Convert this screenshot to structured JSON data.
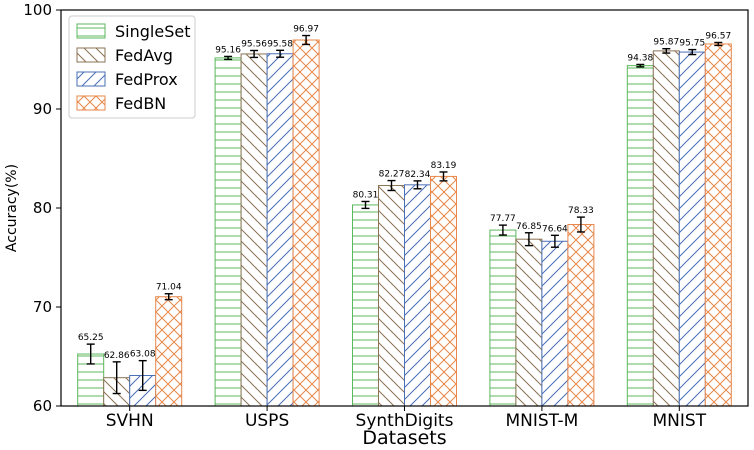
{
  "chart_data": {
    "type": "bar",
    "title": "",
    "xlabel": "Datasets",
    "ylabel": "Accuracy(%)",
    "ylim": [
      60,
      100
    ],
    "yticks": [
      60,
      70,
      80,
      90,
      100
    ],
    "grid": false,
    "legend_position": "top-left",
    "categories": [
      "SVHN",
      "USPS",
      "SynthDigits",
      "MNIST-M",
      "MNIST"
    ],
    "series": [
      {
        "name": "SingleSet",
        "color": "#5cb85c",
        "pattern": "horizontal",
        "values": [
          65.25,
          95.16,
          80.31,
          77.77,
          94.38
        ],
        "errors": [
          1.0,
          0.15,
          0.35,
          0.5,
          0.12
        ],
        "labels": [
          "65.25",
          "95.16",
          "80.31",
          "77.77",
          "94.38"
        ]
      },
      {
        "name": "FedAvg",
        "color": "#8b7355",
        "pattern": "backslash",
        "values": [
          62.86,
          95.56,
          82.27,
          76.85,
          95.87
        ],
        "errors": [
          1.6,
          0.35,
          0.5,
          0.65,
          0.22
        ],
        "labels": [
          "62.86",
          "95.56",
          "82.27",
          "76.85",
          "95.87"
        ]
      },
      {
        "name": "FedProx",
        "color": "#4a6fb5",
        "pattern": "slash",
        "values": [
          63.08,
          95.58,
          82.34,
          76.64,
          95.75
        ],
        "errors": [
          1.5,
          0.35,
          0.4,
          0.6,
          0.25
        ],
        "labels": [
          "63.08",
          "95.58",
          "82.34",
          "76.64",
          "95.75"
        ]
      },
      {
        "name": "FedBN",
        "color": "#e8874a",
        "pattern": "cross",
        "values": [
          71.04,
          96.97,
          83.19,
          78.33,
          96.57
        ],
        "errors": [
          0.3,
          0.45,
          0.45,
          0.75,
          0.15
        ],
        "labels": [
          "71.04",
          "96.97",
          "83.19",
          "78.33",
          "96.57"
        ]
      }
    ]
  }
}
